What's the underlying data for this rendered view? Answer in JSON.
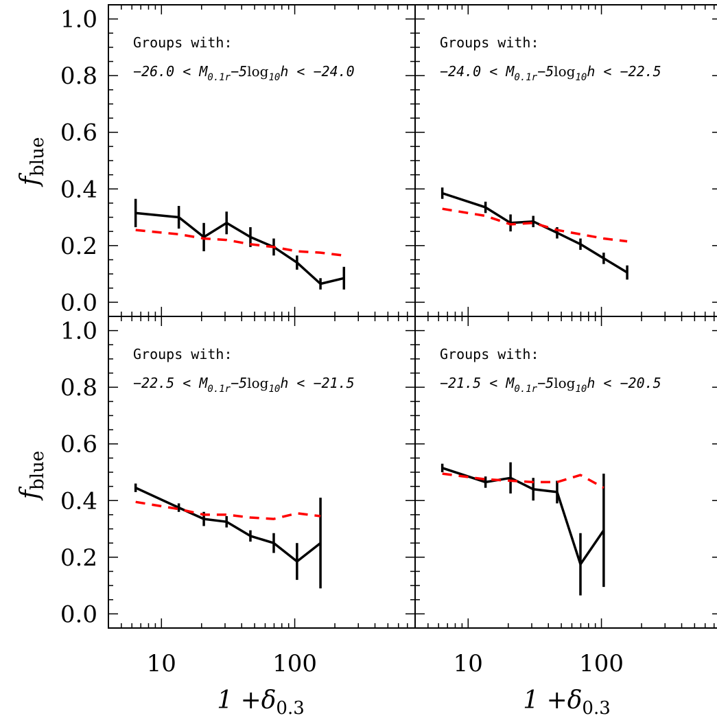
{
  "chart_data": [
    {
      "type": "line",
      "panel": "top-left",
      "annotation": {
        "line1": "Groups with:",
        "lower": "−26.0",
        "upper": "−24.0",
        "lt": "<",
        "mag_symbol": "M",
        "mag_sub": "0.1r",
        "minus5": "−5",
        "log": "log",
        "log_sub": "10",
        "h": "h"
      },
      "series": [
        {
          "style": "solid",
          "color": "#000000",
          "x": [
            6.4,
            13.5,
            20.8,
            30.8,
            46.5,
            69.6,
            104,
            156,
            234
          ],
          "y": [
            0.315,
            0.3,
            0.23,
            0.28,
            0.23,
            0.195,
            0.14,
            0.065,
            0.085
          ],
          "err": [
            0.05,
            0.04,
            0.05,
            0.04,
            0.035,
            0.03,
            0.025,
            0.02,
            0.04
          ]
        },
        {
          "style": "dashed",
          "color": "#ff0000",
          "x": [
            6.4,
            13.5,
            20.8,
            30.8,
            46.5,
            69.6,
            104,
            156,
            234
          ],
          "y": [
            0.255,
            0.24,
            0.225,
            0.22,
            0.205,
            0.195,
            0.18,
            0.175,
            0.165
          ]
        }
      ]
    },
    {
      "type": "line",
      "panel": "top-right",
      "annotation": {
        "line1": "Groups with:",
        "lower": "−24.0",
        "upper": "−22.5",
        "lt": "<",
        "mag_symbol": "M",
        "mag_sub": "0.1r",
        "minus5": "−5",
        "log": "log",
        "log_sub": "10",
        "h": "h"
      },
      "series": [
        {
          "style": "solid",
          "color": "#000000",
          "x": [
            6.4,
            13.5,
            20.8,
            30.8,
            46.5,
            69.6,
            104,
            156
          ],
          "y": [
            0.385,
            0.335,
            0.28,
            0.285,
            0.245,
            0.205,
            0.155,
            0.105
          ],
          "err": [
            0.02,
            0.02,
            0.03,
            0.02,
            0.02,
            0.02,
            0.02,
            0.025
          ]
        },
        {
          "style": "dashed",
          "color": "#ff0000",
          "x": [
            6.4,
            13.5,
            20.8,
            30.8,
            46.5,
            69.6,
            104,
            156
          ],
          "y": [
            0.33,
            0.305,
            0.275,
            0.28,
            0.255,
            0.24,
            0.225,
            0.215
          ]
        }
      ]
    },
    {
      "type": "line",
      "panel": "bottom-left",
      "annotation": {
        "line1": "Groups with:",
        "lower": "−22.5",
        "upper": "−21.5",
        "lt": "<",
        "mag_symbol": "M",
        "mag_sub": "0.1r",
        "minus5": "−5",
        "log": "log",
        "log_sub": "10",
        "h": "h"
      },
      "series": [
        {
          "style": "solid",
          "color": "#000000",
          "x": [
            6.4,
            13.5,
            20.8,
            30.8,
            46.5,
            69.6,
            104,
            156
          ],
          "y": [
            0.445,
            0.375,
            0.335,
            0.325,
            0.275,
            0.25,
            0.185,
            0.25
          ],
          "err": [
            0.015,
            0.015,
            0.025,
            0.02,
            0.02,
            0.035,
            0.065,
            0.16
          ]
        },
        {
          "style": "dashed",
          "color": "#ff0000",
          "x": [
            6.4,
            13.5,
            20.8,
            30.8,
            46.5,
            69.6,
            104,
            156
          ],
          "y": [
            0.395,
            0.37,
            0.35,
            0.35,
            0.34,
            0.335,
            0.355,
            0.345
          ]
        }
      ]
    },
    {
      "type": "line",
      "panel": "bottom-right",
      "annotation": {
        "line1": "Groups with:",
        "lower": "−21.5",
        "upper": "−20.5",
        "lt": "<",
        "mag_symbol": "M",
        "mag_sub": "0.1r",
        "minus5": "−5",
        "log": "log",
        "log_sub": "10",
        "h": "h"
      },
      "series": [
        {
          "style": "solid",
          "color": "#000000",
          "x": [
            6.4,
            13.5,
            20.8,
            30.8,
            46.5,
            69.6,
            104
          ],
          "y": [
            0.515,
            0.465,
            0.48,
            0.44,
            0.43,
            0.175,
            0.295
          ],
          "err": [
            0.015,
            0.02,
            0.055,
            0.04,
            0.04,
            0.11,
            0.2
          ]
        },
        {
          "style": "dashed",
          "color": "#ff0000",
          "x": [
            6.4,
            13.5,
            20.8,
            30.8,
            46.5,
            69.6,
            104
          ],
          "y": [
            0.495,
            0.475,
            0.47,
            0.465,
            0.465,
            0.49,
            0.445
          ]
        }
      ]
    }
  ],
  "axes": {
    "x_scale": "log",
    "xlim": [
      4,
      800
    ],
    "ylim": [
      -0.05,
      1.05
    ],
    "x_major_ticks": [
      10,
      100
    ],
    "x_tick_labels": [
      "10",
      "100"
    ],
    "y_major_ticks": [
      0.0,
      0.2,
      0.4,
      0.6,
      0.8,
      1.0
    ],
    "y_tick_labels": [
      "0.0",
      "0.2",
      "0.4",
      "0.6",
      "0.8",
      "1.0"
    ],
    "xlabel_prefix": "1 +",
    "xlabel_symbol": "δ",
    "xlabel_sub": "0.3",
    "ylabel_symbol": "f",
    "ylabel_sub": "blue"
  }
}
